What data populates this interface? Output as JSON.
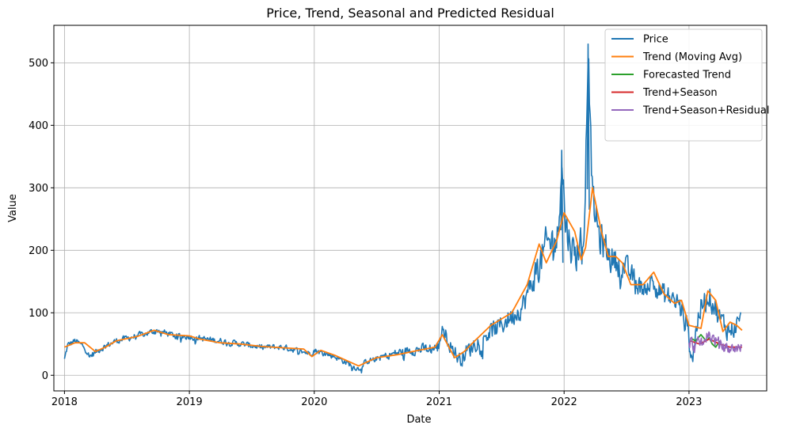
{
  "chart_data": {
    "type": "line",
    "title": "Price, Trend, Seasonal and Predicted Residual",
    "xlabel": "Date",
    "ylabel": "Value",
    "xlim": [
      "2017-12-01",
      "2023-08-16"
    ],
    "ylim": [
      -25,
      560
    ],
    "grid": true,
    "legend_position": "top-right",
    "x_ticks": [
      "2018",
      "2019",
      "2020",
      "2021",
      "2022",
      "2023"
    ],
    "x_tick_dates": [
      "2018-01-01",
      "2019-01-01",
      "2020-01-01",
      "2021-01-01",
      "2022-01-01",
      "2023-01-01"
    ],
    "y_ticks": [
      0,
      100,
      200,
      300,
      400,
      500
    ],
    "series": [
      {
        "name": "Price",
        "color": "#1f77b4",
        "style": "noisy",
        "noise_amp": [
          [
            2018.0,
            7
          ],
          [
            2020.5,
            6
          ],
          [
            2021.2,
            18
          ],
          [
            2021.7,
            25
          ],
          [
            2021.85,
            45
          ],
          [
            2022.25,
            40
          ],
          [
            2022.6,
            22
          ],
          [
            2023.0,
            30
          ],
          [
            2023.45,
            22
          ]
        ],
        "points": [
          [
            "2018-01-01",
            25
          ],
          [
            "2018-01-10",
            48
          ],
          [
            "2018-02-01",
            55
          ],
          [
            "2018-03-01",
            45
          ],
          [
            "2018-03-15",
            30
          ],
          [
            "2018-04-15",
            42
          ],
          [
            "2018-06-01",
            55
          ],
          [
            "2018-08-01",
            63
          ],
          [
            "2018-10-01",
            72
          ],
          [
            "2018-11-15",
            64
          ],
          [
            "2019-01-01",
            62
          ],
          [
            "2019-02-15",
            58
          ],
          [
            "2019-04-01",
            55
          ],
          [
            "2019-06-01",
            50
          ],
          [
            "2019-08-01",
            45
          ],
          [
            "2019-10-01",
            45
          ],
          [
            "2019-12-20",
            35
          ],
          [
            "2020-01-01",
            40
          ],
          [
            "2020-03-01",
            30
          ],
          [
            "2020-05-10",
            10
          ],
          [
            "2020-06-01",
            22
          ],
          [
            "2020-08-01",
            32
          ],
          [
            "2020-10-01",
            40
          ],
          [
            "2020-12-01",
            42
          ],
          [
            "2021-01-01",
            45
          ],
          [
            "2021-01-10",
            80
          ],
          [
            "2021-02-01",
            50
          ],
          [
            "2021-03-01",
            25
          ],
          [
            "2021-05-01",
            60
          ],
          [
            "2021-07-01",
            80
          ],
          [
            "2021-09-01",
            110
          ],
          [
            "2021-10-15",
            170
          ],
          [
            "2021-11-15",
            210
          ],
          [
            "2021-12-15",
            220
          ],
          [
            "2021-12-25",
            360
          ],
          [
            "2022-01-05",
            240
          ],
          [
            "2022-02-01",
            190
          ],
          [
            "2022-03-01",
            230
          ],
          [
            "2022-03-12",
            530
          ],
          [
            "2022-03-25",
            280
          ],
          [
            "2022-04-15",
            220
          ],
          [
            "2022-05-15",
            190
          ],
          [
            "2022-07-01",
            170
          ],
          [
            "2022-08-15",
            140
          ],
          [
            "2022-09-15",
            150
          ],
          [
            "2022-10-15",
            130
          ],
          [
            "2022-12-01",
            115
          ],
          [
            "2022-12-25",
            80
          ],
          [
            "2023-01-10",
            30
          ],
          [
            "2023-02-01",
            105
          ],
          [
            "2023-03-01",
            130
          ],
          [
            "2023-04-01",
            90
          ],
          [
            "2023-05-01",
            70
          ],
          [
            "2023-06-01",
            88
          ]
        ]
      },
      {
        "name": "Trend (Moving Avg)",
        "color": "#ff7f0e",
        "style": "smooth",
        "points": [
          [
            "2018-01-01",
            45
          ],
          [
            "2018-02-01",
            52
          ],
          [
            "2018-03-01",
            52
          ],
          [
            "2018-04-01",
            38
          ],
          [
            "2018-05-01",
            45
          ],
          [
            "2018-06-01",
            55
          ],
          [
            "2018-08-01",
            62
          ],
          [
            "2018-09-20",
            72
          ],
          [
            "2018-11-01",
            65
          ],
          [
            "2019-01-01",
            63
          ],
          [
            "2019-02-01",
            58
          ],
          [
            "2019-04-01",
            52
          ],
          [
            "2019-06-01",
            50
          ],
          [
            "2019-08-01",
            46
          ],
          [
            "2019-10-01",
            44
          ],
          [
            "2019-12-01",
            42
          ],
          [
            "2019-12-25",
            30
          ],
          [
            "2020-01-20",
            40
          ],
          [
            "2020-03-01",
            32
          ],
          [
            "2020-05-10",
            15
          ],
          [
            "2020-07-01",
            28
          ],
          [
            "2020-09-01",
            33
          ],
          [
            "2020-11-01",
            40
          ],
          [
            "2020-12-20",
            45
          ],
          [
            "2021-01-10",
            65
          ],
          [
            "2021-02-15",
            28
          ],
          [
            "2021-03-15",
            38
          ],
          [
            "2021-04-15",
            55
          ],
          [
            "2021-06-01",
            80
          ],
          [
            "2021-08-01",
            100
          ],
          [
            "2021-09-15",
            145
          ],
          [
            "2021-10-20",
            210
          ],
          [
            "2021-11-10",
            180
          ],
          [
            "2021-12-10",
            215
          ],
          [
            "2022-01-01",
            260
          ],
          [
            "2022-02-01",
            230
          ],
          [
            "2022-02-20",
            185
          ],
          [
            "2022-03-05",
            205
          ],
          [
            "2022-03-25",
            300
          ],
          [
            "2022-04-20",
            230
          ],
          [
            "2022-05-10",
            190
          ],
          [
            "2022-06-01",
            190
          ],
          [
            "2022-06-20",
            180
          ],
          [
            "2022-07-15",
            145
          ],
          [
            "2022-08-20",
            145
          ],
          [
            "2022-09-20",
            165
          ],
          [
            "2022-10-20",
            130
          ],
          [
            "2022-11-20",
            115
          ],
          [
            "2022-12-10",
            120
          ],
          [
            "2023-01-01",
            80
          ],
          [
            "2023-02-05",
            75
          ],
          [
            "2023-02-25",
            135
          ],
          [
            "2023-03-20",
            120
          ],
          [
            "2023-04-10",
            70
          ],
          [
            "2023-05-01",
            85
          ],
          [
            "2023-05-20",
            80
          ],
          [
            "2023-06-05",
            72
          ]
        ]
      },
      {
        "name": "Forecasted Trend",
        "color": "#2ca02c",
        "style": "smooth",
        "points": [
          [
            "2023-01-05",
            60
          ],
          [
            "2023-01-20",
            55
          ],
          [
            "2023-02-05",
            65
          ],
          [
            "2023-02-20",
            55
          ],
          [
            "2023-03-01",
            60
          ],
          [
            "2023-03-10",
            50
          ],
          [
            "2023-03-20",
            45
          ],
          [
            "2023-04-01",
            55
          ]
        ]
      },
      {
        "name": "Trend+Season",
        "color": "#d62728",
        "style": "smooth",
        "points": [
          [
            "2023-01-05",
            55
          ],
          [
            "2023-02-01",
            50
          ],
          [
            "2023-03-01",
            58
          ],
          [
            "2023-04-01",
            50
          ],
          [
            "2023-05-01",
            45
          ],
          [
            "2023-06-05",
            45
          ]
        ]
      },
      {
        "name": "Trend+Season+Residual",
        "color": "#9467bd",
        "style": "noisy",
        "noise_amp": [
          [
            2023.0,
            16
          ],
          [
            2023.2,
            14
          ],
          [
            2023.45,
            10
          ]
        ],
        "points": [
          [
            "2023-01-01",
            55
          ],
          [
            "2023-01-20",
            45
          ],
          [
            "2023-02-10",
            55
          ],
          [
            "2023-03-01",
            65
          ],
          [
            "2023-03-20",
            55
          ],
          [
            "2023-04-10",
            45
          ],
          [
            "2023-05-01",
            42
          ],
          [
            "2023-06-05",
            45
          ]
        ]
      }
    ]
  }
}
